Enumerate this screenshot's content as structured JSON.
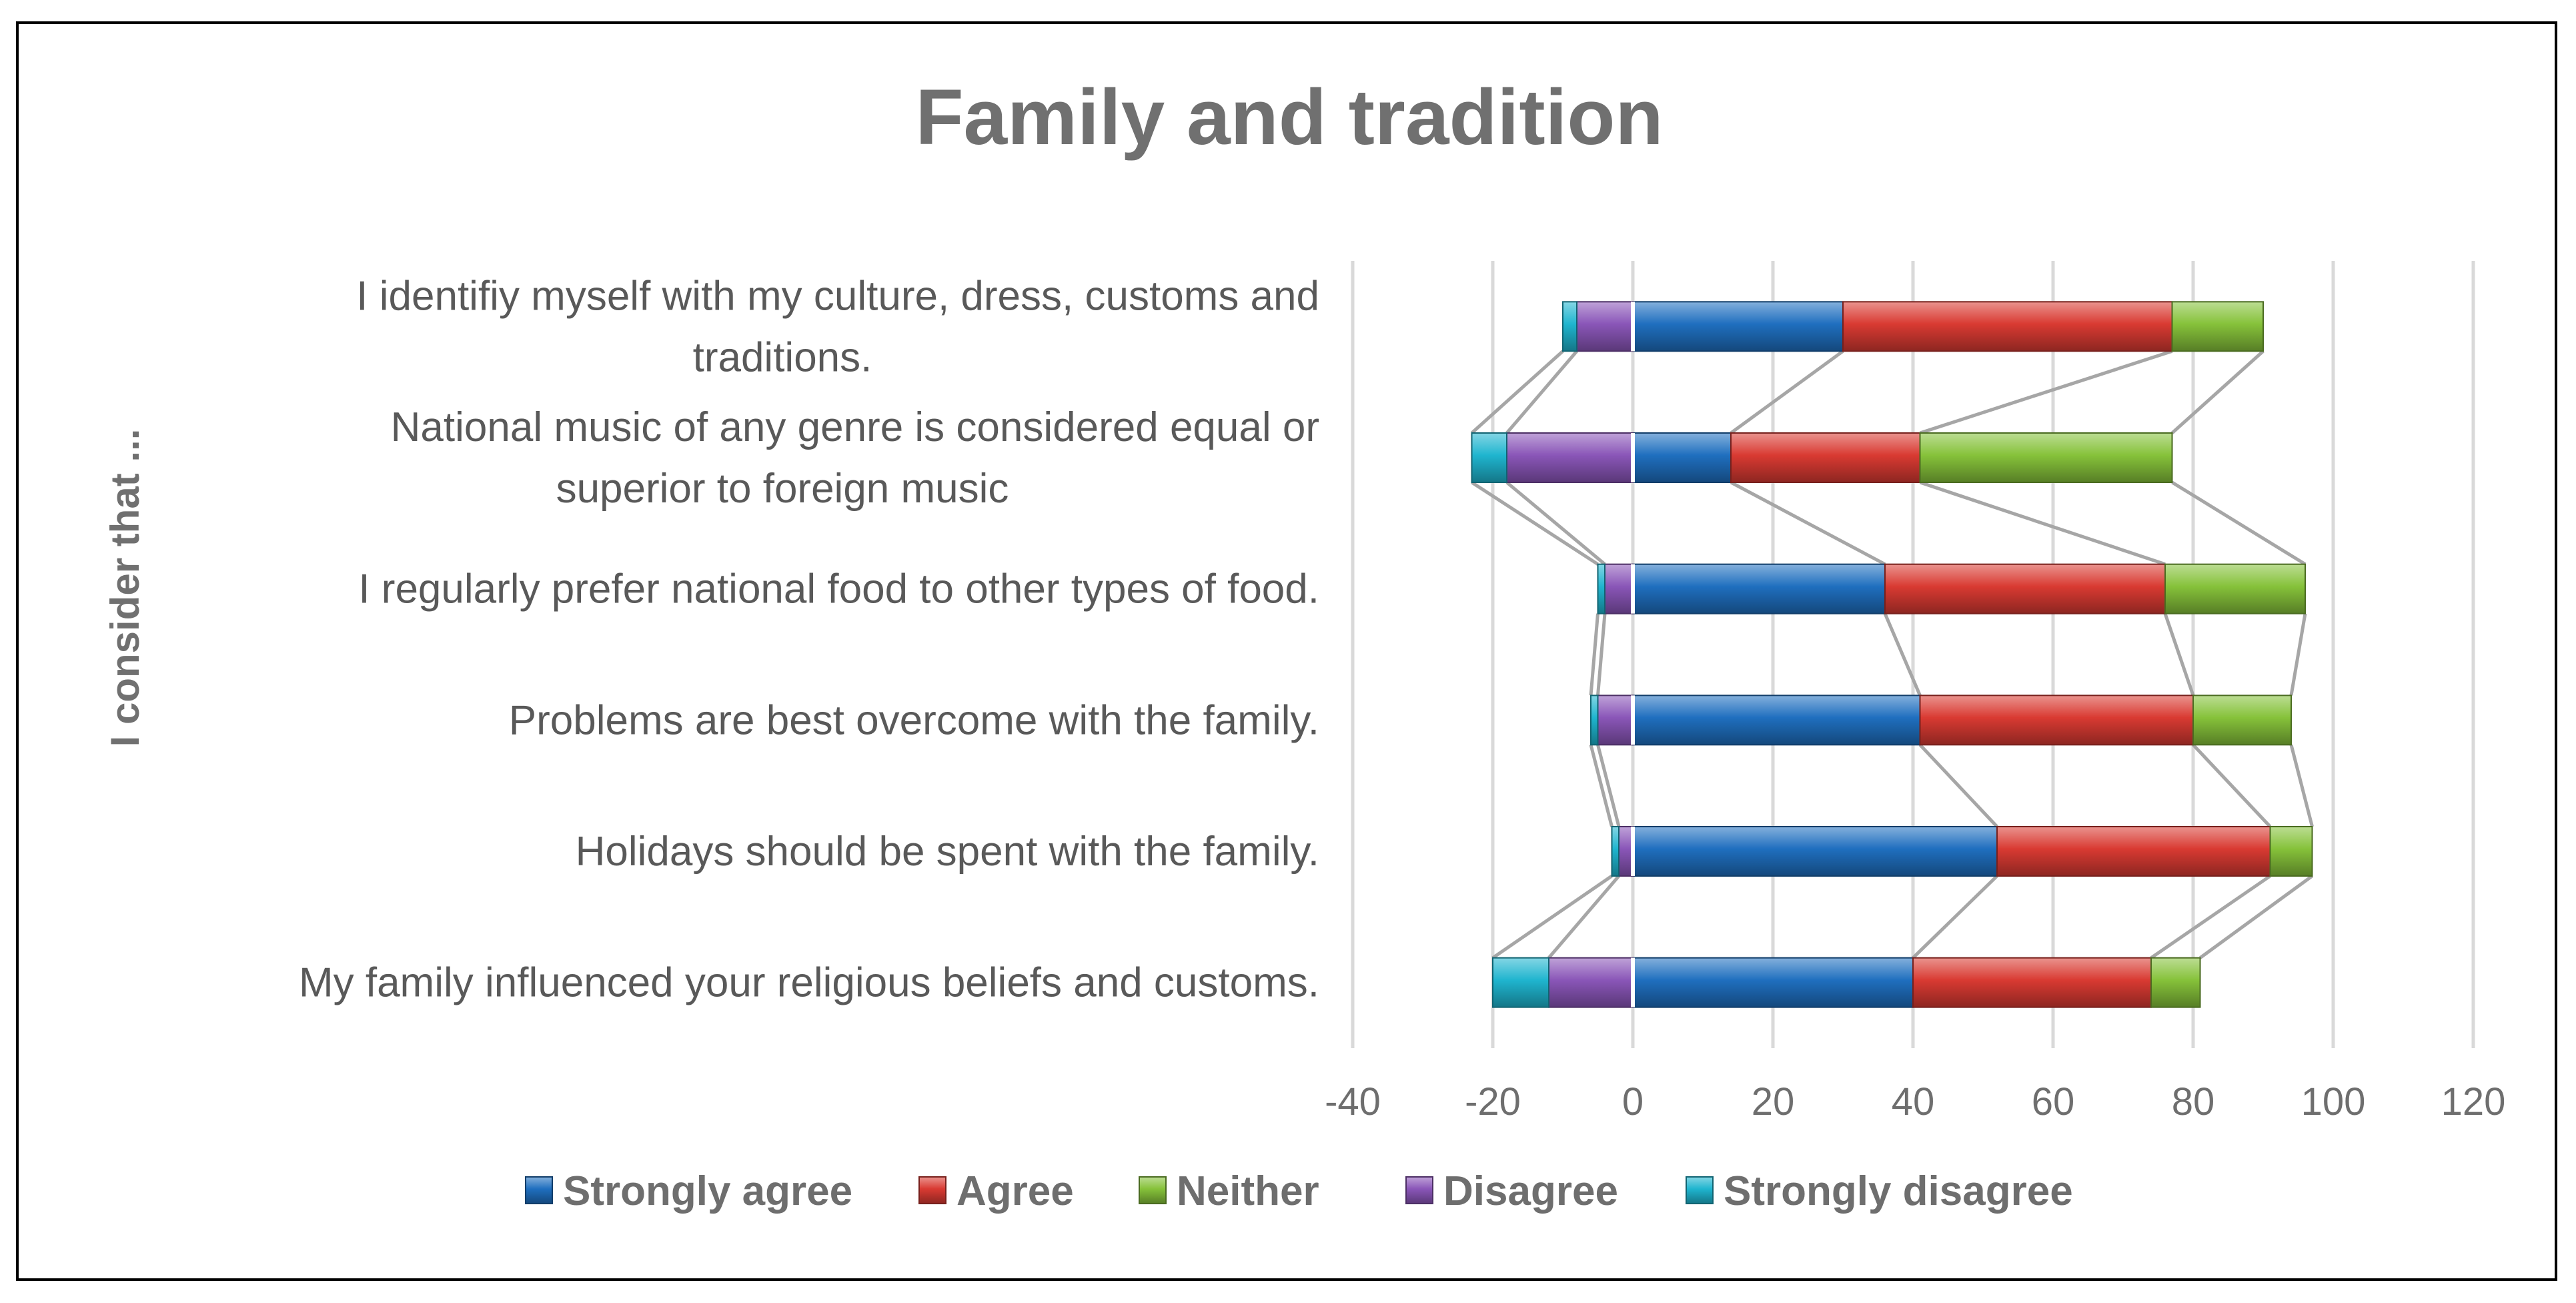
{
  "chart_data": {
    "type": "bar",
    "orientation": "horizontal",
    "stacked": true,
    "diverging": true,
    "title": "Family and tradition",
    "ylabel": "I consider that ...",
    "xlabel": "",
    "xlim": [
      -40,
      120
    ],
    "xticks": [
      "-40",
      "-20",
      "0",
      "20",
      "40",
      "60",
      "80",
      "100",
      "120"
    ],
    "grid": true,
    "legend_position": "bottom",
    "categories": [
      "I identifiy myself with my culture, dress, customs and traditions.",
      "National music of any genre is considered equal or superior to foreign music",
      "I regularly prefer national food to other types of food.",
      "Problems are best overcome with the family.",
      "Holidays should be spent with the family.",
      "My family influenced your religious beliefs and customs."
    ],
    "category_lines": [
      [
        "I identifiy myself with my culture, dress, customs and",
        "traditions."
      ],
      [
        "National music of any genre is considered equal or",
        "superior to foreign music"
      ],
      [
        "I regularly prefer national food to other types of food."
      ],
      [
        "Problems are best overcome with the family."
      ],
      [
        "Holidays should be spent with the family."
      ],
      [
        "My family influenced your religious beliefs and customs."
      ]
    ],
    "series": [
      {
        "name": "Strongly agree",
        "color": "#1f6fbf",
        "values": [
          30,
          14,
          36,
          41,
          52,
          40
        ]
      },
      {
        "name": "Agree",
        "color": "#d93a32",
        "values": [
          47,
          27,
          40,
          39,
          39,
          34
        ]
      },
      {
        "name": "Neither",
        "color": "#86c23a",
        "values": [
          13,
          36,
          20,
          14,
          6,
          7
        ]
      },
      {
        "name": "Disagree",
        "color": "#8a56b8",
        "values": [
          8,
          18,
          4,
          5,
          2,
          12
        ]
      },
      {
        "name": "Strongly disagree",
        "color": "#1fb5cf",
        "values": [
          2,
          5,
          1,
          1,
          1,
          8
        ]
      }
    ],
    "positive_series": [
      "Strongly agree",
      "Agree",
      "Neither"
    ],
    "negative_series": [
      "Disagree",
      "Strongly disagree"
    ]
  }
}
